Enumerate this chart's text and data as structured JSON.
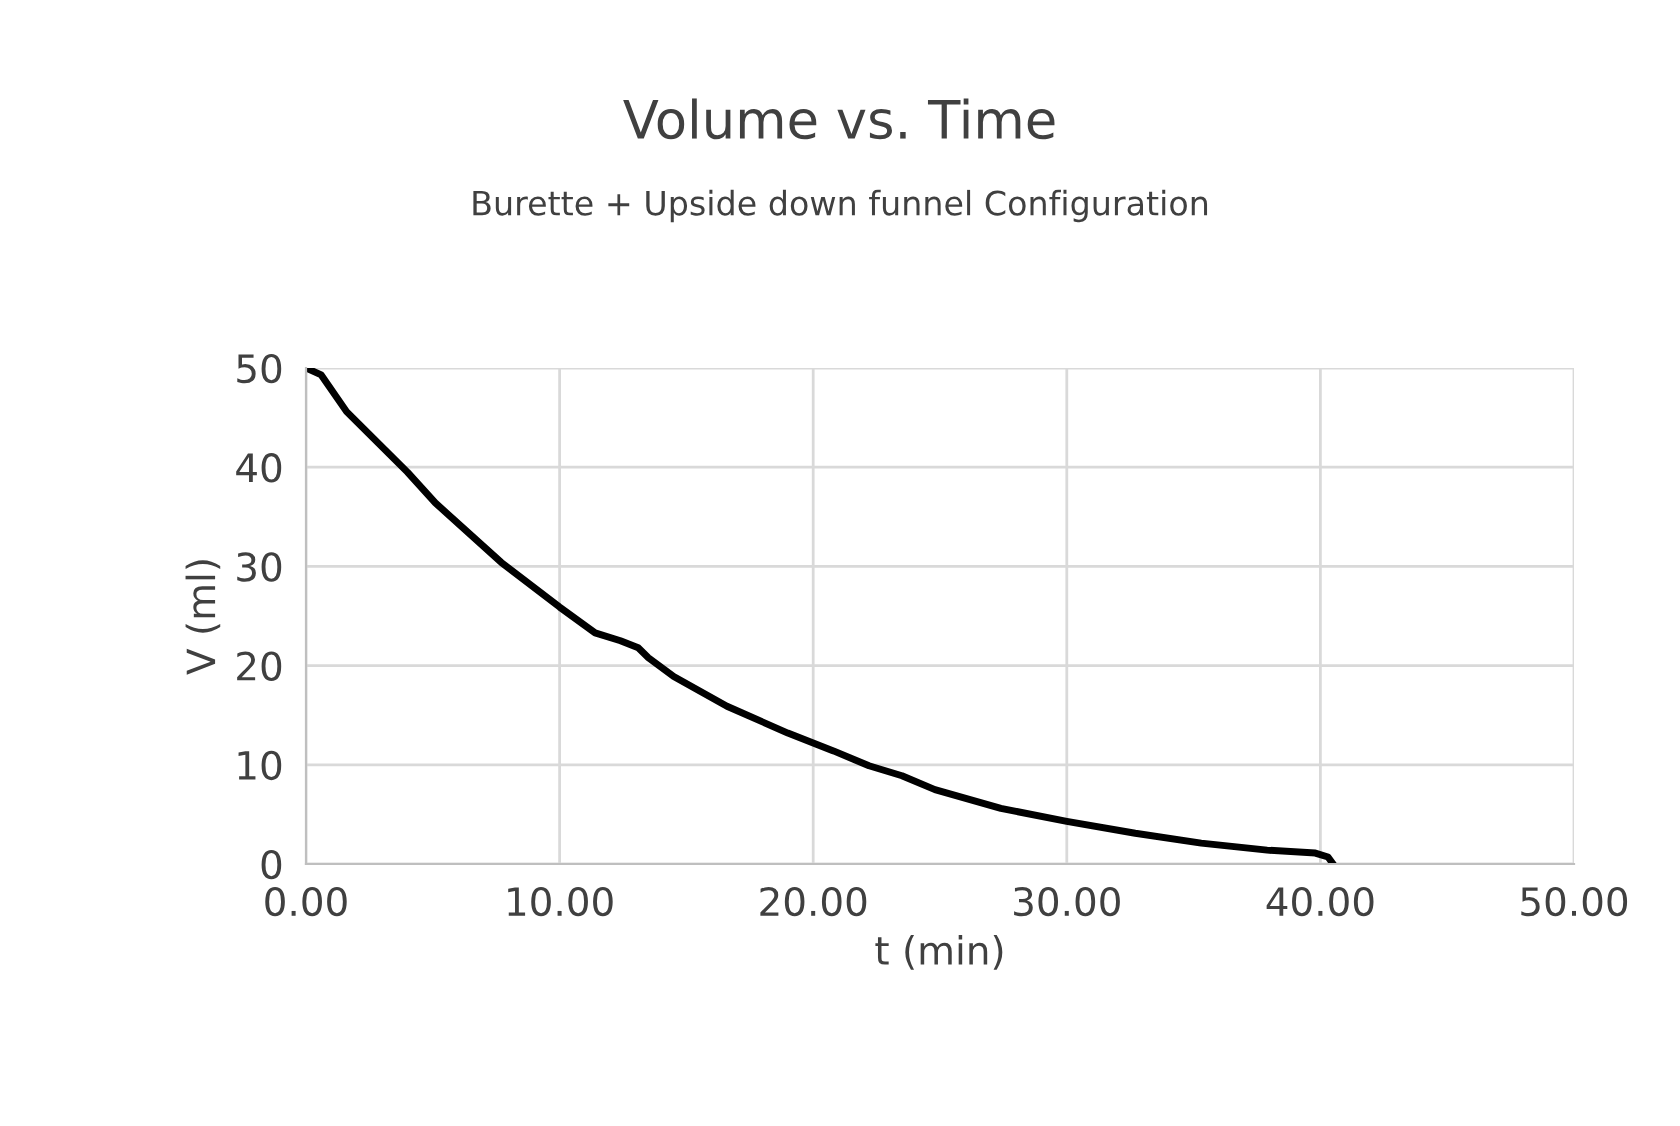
{
  "chart_data": {
    "type": "line",
    "title": "Volume vs. Time",
    "subtitle": "Burette + Upside down funnel Configuration",
    "xlabel": "t (min)",
    "ylabel": "V (ml)",
    "xlim": [
      0,
      50
    ],
    "ylim": [
      0,
      50
    ],
    "xticks": [
      {
        "value": 0,
        "label": "0.00"
      },
      {
        "value": 10,
        "label": "10.00"
      },
      {
        "value": 20,
        "label": "20.00"
      },
      {
        "value": 30,
        "label": "30.00"
      },
      {
        "value": 40,
        "label": "40.00"
      },
      {
        "value": 50,
        "label": "50.00"
      }
    ],
    "yticks": [
      0,
      10,
      20,
      30,
      40,
      50
    ],
    "grid": true,
    "legend": false,
    "marker": "none",
    "line_style": "solid",
    "series": [
      {
        "color": "#000000",
        "x": [
          0,
          0.6,
          1.6,
          4.0,
          5.1,
          7.7,
          10,
          11.4,
          12.4,
          13.1,
          13.5,
          14.5,
          16.6,
          19.0,
          20.8,
          22.2,
          23.5,
          24.8,
          27.4,
          30.0,
          32.7,
          35.3,
          37.9,
          39.8,
          40.3,
          40.5
        ],
        "values": [
          50,
          49.3,
          45.6,
          39.5,
          36.4,
          30.4,
          25.9,
          23.3,
          22.5,
          21.8,
          20.8,
          18.9,
          15.9,
          13.2,
          11.4,
          9.9,
          8.9,
          7.5,
          5.6,
          4.3,
          3.1,
          2.1,
          1.4,
          1.1,
          0.7,
          0
        ]
      }
    ]
  }
}
